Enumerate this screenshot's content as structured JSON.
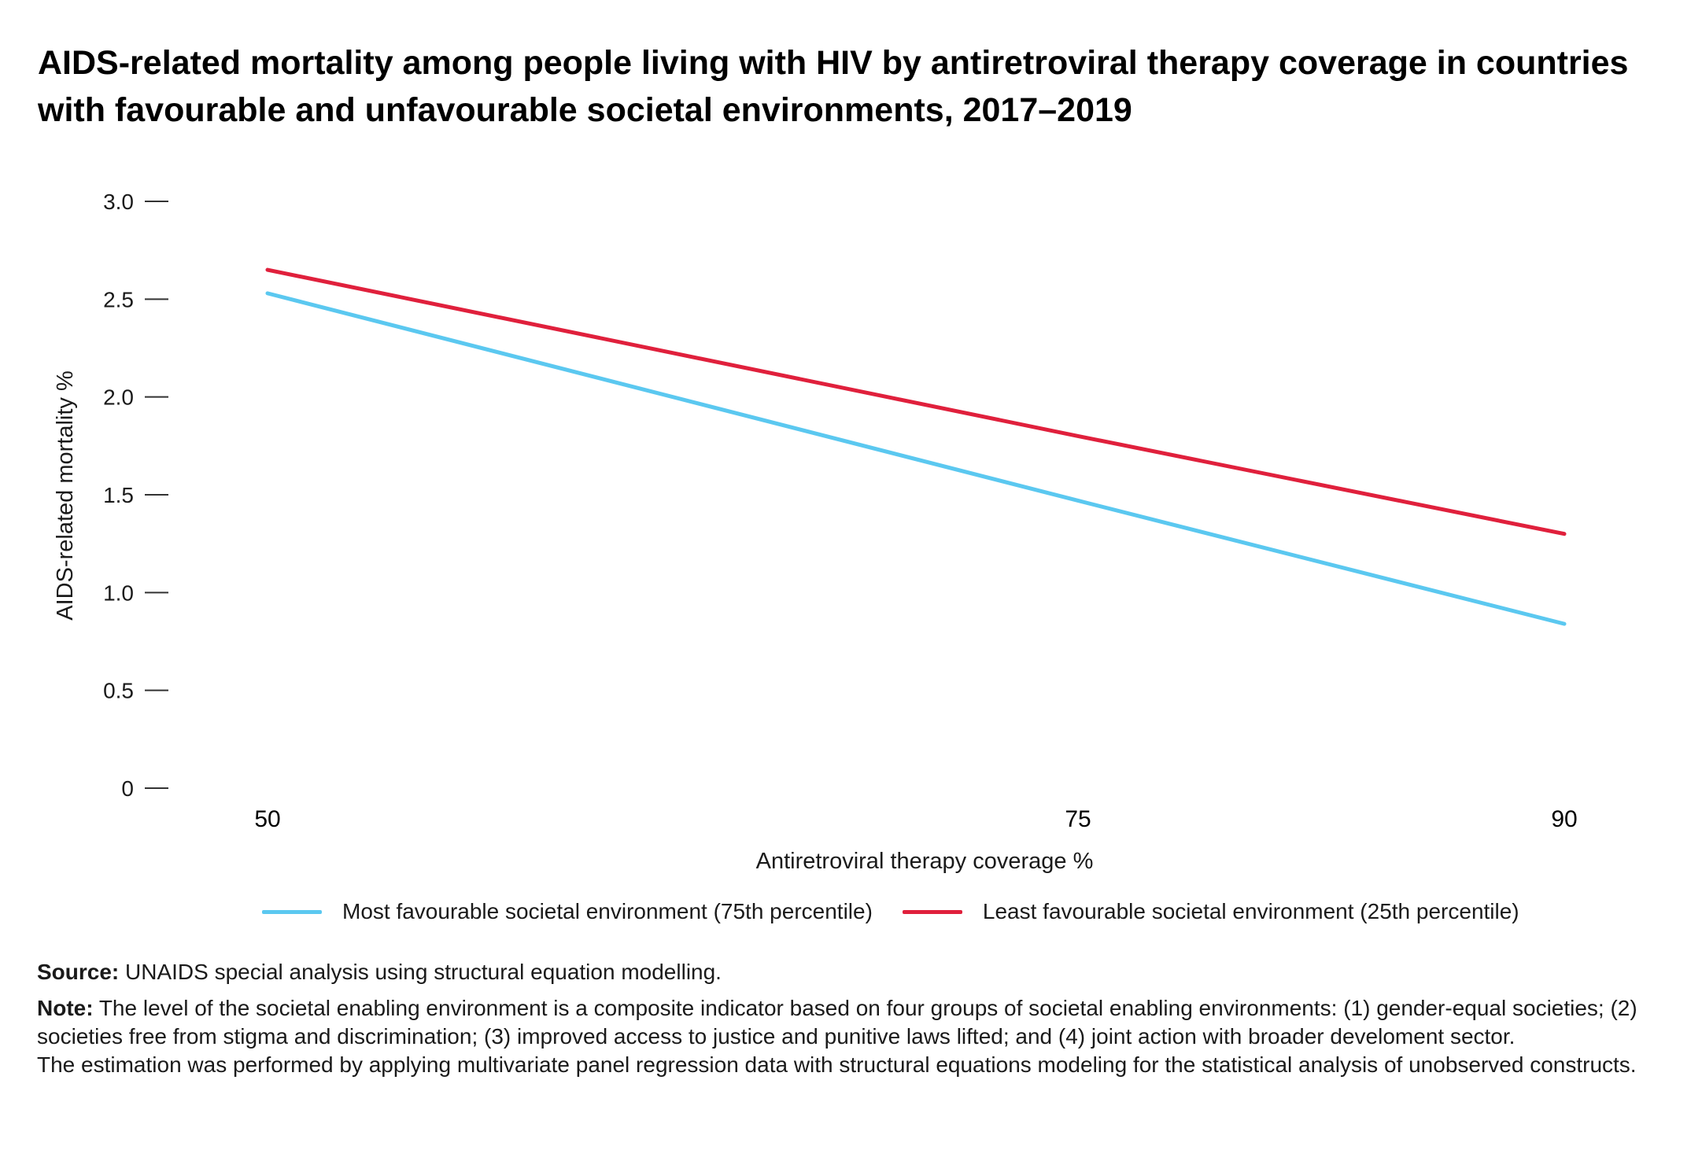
{
  "title": "AIDS-related mortality among people living with HIV by antiretroviral therapy coverage in countries with favourable and unfavourable societal environments, 2017–2019",
  "chart_data": {
    "type": "line",
    "title": "AIDS-related mortality among people living with HIV by antiretroviral therapy coverage in countries with favourable and unfavourable societal environments, 2017–2019",
    "xlabel": "Antiretroviral therapy coverage %",
    "ylabel": "AIDS-related mortality %",
    "x": [
      50,
      75,
      90
    ],
    "x_tick_labels": [
      "50",
      "75",
      "90"
    ],
    "y_ticks": [
      0,
      0.5,
      1.0,
      1.5,
      2.0,
      2.5,
      3.0
    ],
    "y_tick_labels": [
      "0",
      "0.5",
      "1.0",
      "1.5",
      "2.0",
      "2.5",
      "3.0"
    ],
    "xlim": [
      50,
      90
    ],
    "ylim": [
      0,
      3.0
    ],
    "grid": false,
    "legend_position": "bottom",
    "series": [
      {
        "name": "Most favourable societal environment (75th percentile)",
        "color": "#5bc8f0",
        "values": [
          2.53,
          1.47,
          0.84
        ]
      },
      {
        "name": "Least favourable societal environment (25th percentile)",
        "color": "#e0203c",
        "values": [
          2.65,
          1.8,
          1.3
        ]
      }
    ]
  },
  "footer": {
    "source_label": "Source:",
    "source_text": " UNAIDS special analysis using structural equation modelling.",
    "note_label": "Note:",
    "note_text": " The level of the societal enabling environment is a composite indicator based on four groups of societal enabling environments: (1) gender-equal societies; (2) societies free from stigma and discrimination; (3) improved access to justice and punitive laws lifted; and (4) joint action with broader develoment sector.",
    "estimation_text": "The estimation was performed by applying multivariate panel regression data with structural equations modeling for the statistical analysis of unobserved constructs."
  }
}
